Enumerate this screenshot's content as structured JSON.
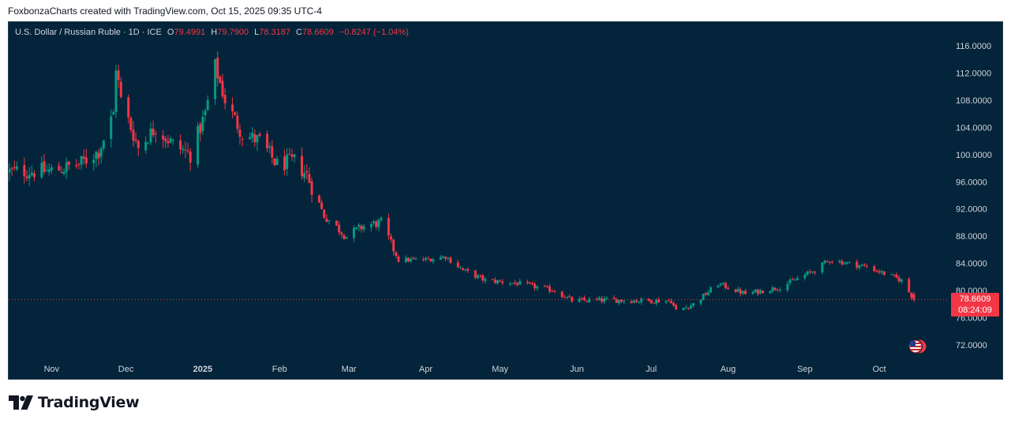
{
  "caption": "FoxbonzaCharts created with TradingView.com, Oct 15, 2025 09:35 UTC-4",
  "brand": {
    "name": "TradingView",
    "logo_icon": "tradingview-logo-icon"
  },
  "legend": {
    "symbol": "U.S. Dollar / Russian Ruble · 1D · ICE",
    "open_label": "O",
    "open": "79.4991",
    "high_label": "H",
    "high": "79.7900",
    "low_label": "L",
    "low": "78.3187",
    "close_label": "C",
    "close": "78.6609",
    "change": "−0.8247 (−1.04%)"
  },
  "price_badge": {
    "price": "78.6609",
    "countdown": "08:24:09",
    "color": "#f23645"
  },
  "colors": {
    "background": "#03243a",
    "up": "#089981",
    "down": "#f23645",
    "axis_text": "#d1d4dc"
  },
  "chart_data": {
    "type": "candlestick",
    "y_axis": {
      "ticks": [
        "116.0000",
        "112.0000",
        "108.0000",
        "104.0000",
        "100.0000",
        "96.0000",
        "92.0000",
        "88.0000",
        "84.0000",
        "80.0000",
        "76.0000",
        "72.0000"
      ],
      "range": [
        70.0,
        118.5
      ],
      "position": "right"
    },
    "x_axis": {
      "ticks": [
        "Nov",
        "Dec",
        "2025",
        "Feb",
        "Mar",
        "Apr",
        "May",
        "Jun",
        "Jul",
        "Aug",
        "Sep",
        "Oct"
      ]
    },
    "last_price": 78.6609,
    "grid": false,
    "series_close": [
      {
        "date": "2024-10-15",
        "close": 97.5
      },
      {
        "date": "2024-11-01",
        "close": 97.6
      },
      {
        "date": "2024-11-12",
        "close": 98.5
      },
      {
        "date": "2024-11-20",
        "close": 100.5
      },
      {
        "date": "2024-11-26",
        "close": 106.0
      },
      {
        "date": "2024-11-27",
        "close": 113.0
      },
      {
        "date": "2024-11-29",
        "close": 108.0
      },
      {
        "date": "2024-12-06",
        "close": 101.0
      },
      {
        "date": "2024-12-13",
        "close": 104.0
      },
      {
        "date": "2024-12-20",
        "close": 101.5
      },
      {
        "date": "2024-12-27",
        "close": 100.0
      },
      {
        "date": "2025-01-02",
        "close": 106.0
      },
      {
        "date": "2025-01-06",
        "close": 113.0
      },
      {
        "date": "2025-01-10",
        "close": 108.0
      },
      {
        "date": "2025-01-17",
        "close": 103.0
      },
      {
        "date": "2025-01-24",
        "close": 102.0
      },
      {
        "date": "2025-01-31",
        "close": 98.5
      },
      {
        "date": "2025-02-07",
        "close": 99.0
      },
      {
        "date": "2025-02-12",
        "close": 97.0
      },
      {
        "date": "2025-02-19",
        "close": 91.0
      },
      {
        "date": "2025-02-28",
        "close": 88.0
      },
      {
        "date": "2025-03-07",
        "close": 89.5
      },
      {
        "date": "2025-03-14",
        "close": 90.0
      },
      {
        "date": "2025-03-21",
        "close": 84.5
      },
      {
        "date": "2025-03-31",
        "close": 84.5
      },
      {
        "date": "2025-04-09",
        "close": 85.0
      },
      {
        "date": "2025-04-16",
        "close": 83.0
      },
      {
        "date": "2025-04-25",
        "close": 81.5
      },
      {
        "date": "2025-05-09",
        "close": 81.0
      },
      {
        "date": "2025-05-23",
        "close": 80.0
      },
      {
        "date": "2025-05-30",
        "close": 78.5
      },
      {
        "date": "2025-06-13",
        "close": 78.6
      },
      {
        "date": "2025-06-27",
        "close": 78.5
      },
      {
        "date": "2025-07-09",
        "close": 78.5
      },
      {
        "date": "2025-07-11",
        "close": 77.0
      },
      {
        "date": "2025-07-18",
        "close": 78.0
      },
      {
        "date": "2025-07-28",
        "close": 81.0
      },
      {
        "date": "2025-08-08",
        "close": 79.5
      },
      {
        "date": "2025-08-22",
        "close": 80.5
      },
      {
        "date": "2025-09-05",
        "close": 83.0
      },
      {
        "date": "2025-09-11",
        "close": 84.5
      },
      {
        "date": "2025-09-26",
        "close": 83.5
      },
      {
        "date": "2025-10-03",
        "close": 82.5
      },
      {
        "date": "2025-10-10",
        "close": 81.5
      },
      {
        "date": "2025-10-15",
        "close": 78.6609
      }
    ]
  }
}
